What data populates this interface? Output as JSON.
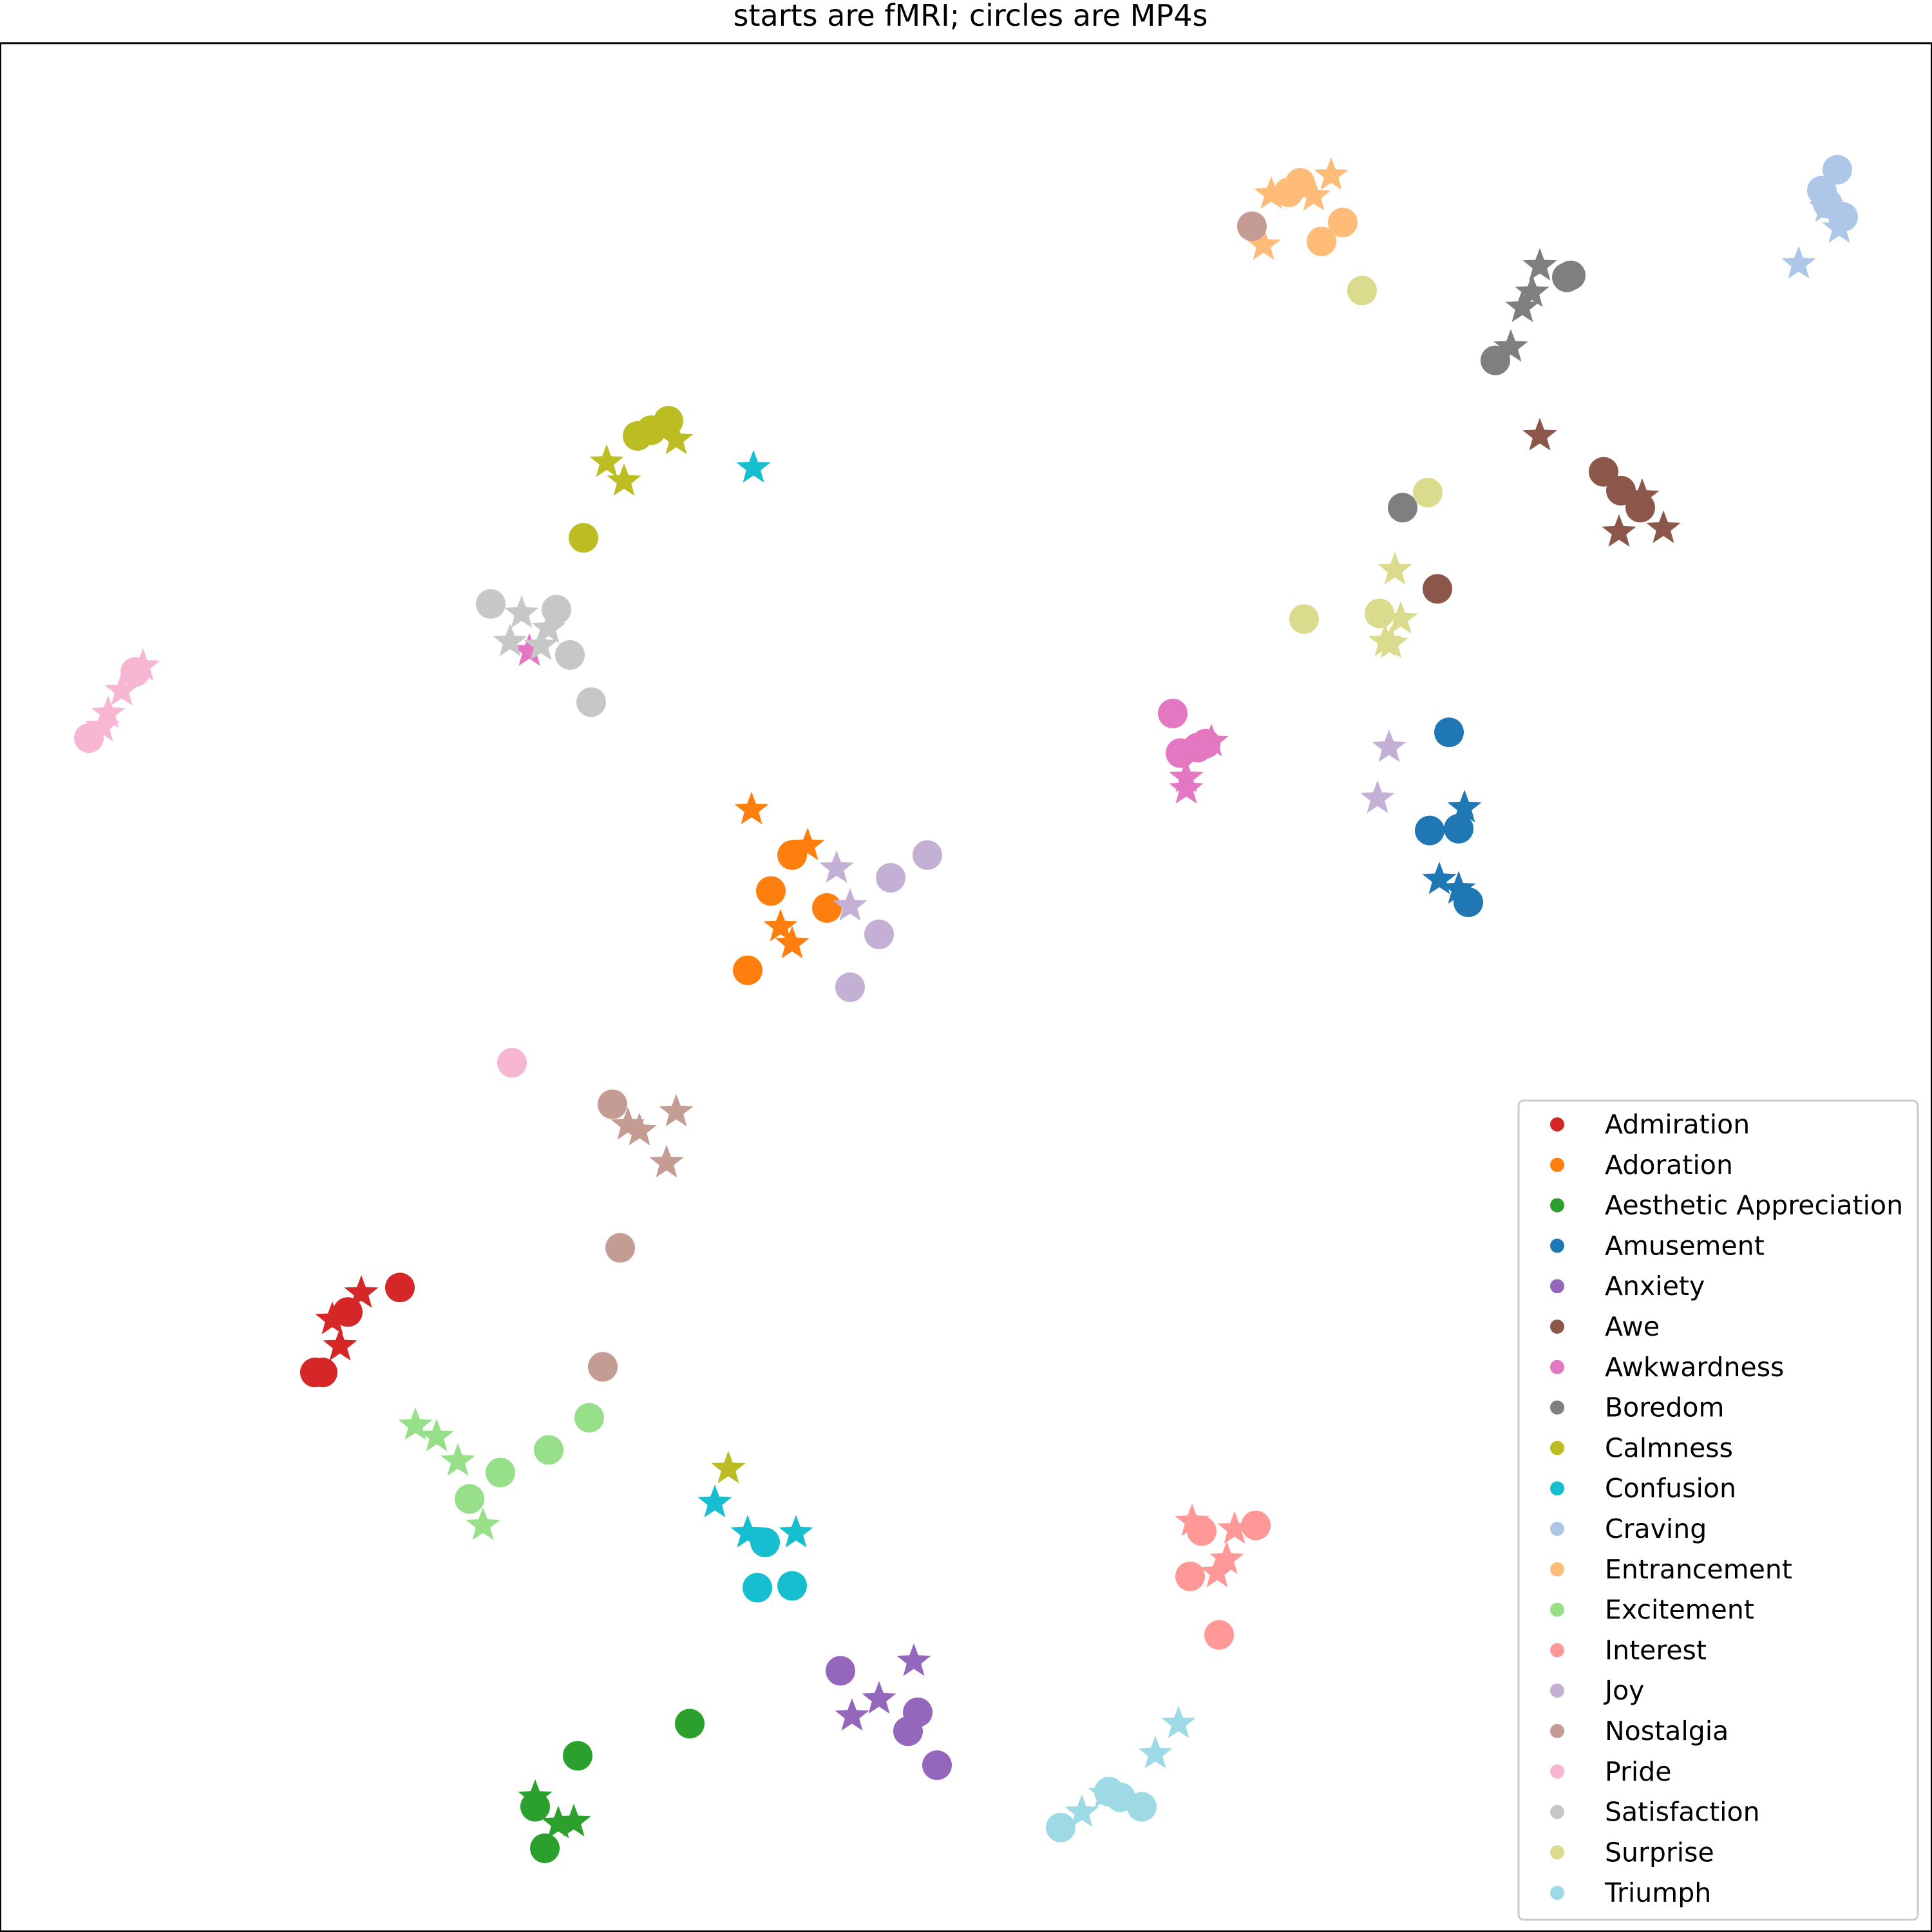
{
  "chart_data": {
    "type": "scatter",
    "title": "starts are fMRI; circles are MP4s",
    "xlabel": "",
    "ylabel": "",
    "xlim": [
      0,
      1000
    ],
    "ylim": [
      0,
      1000
    ],
    "axes_ticks": false,
    "grid": false,
    "legend": {
      "position": "bottom-right"
    },
    "marker_legend": {
      "star": "fMRI",
      "circle": "MP4s"
    },
    "series": [
      {
        "name": "Admiration",
        "color": "#d62728",
        "circles": [
          [
            207,
            341
          ],
          [
            180,
            328
          ],
          [
            163,
            296
          ],
          [
            167,
            296
          ]
        ],
        "stars": [
          [
            187,
            338
          ],
          [
            172,
            324
          ],
          [
            176,
            310
          ]
        ]
      },
      {
        "name": "Adoration",
        "color": "#ff7f0e",
        "circles": [
          [
            410,
            570
          ],
          [
            399,
            551
          ],
          [
            428,
            542
          ],
          [
            387,
            509
          ]
        ],
        "stars": [
          [
            389,
            594
          ],
          [
            418,
            575
          ],
          [
            404,
            532
          ],
          [
            410,
            523
          ]
        ]
      },
      {
        "name": "Aesthetic Appreciation",
        "color": "#2ca02c",
        "circles": [
          [
            357,
            110
          ],
          [
            299,
            93
          ],
          [
            277,
            66
          ],
          [
            282,
            44
          ]
        ],
        "stars": [
          [
            277,
            71
          ],
          [
            289,
            57
          ],
          [
            297,
            58
          ]
        ]
      },
      {
        "name": "Amusement",
        "color": "#1f77b4",
        "circles": [
          [
            750,
            635
          ],
          [
            740,
            583
          ],
          [
            755,
            584
          ],
          [
            760,
            545
          ]
        ],
        "stars": [
          [
            758,
            595
          ],
          [
            745,
            557
          ],
          [
            755,
            552
          ]
        ]
      },
      {
        "name": "Anxiety",
        "color": "#9467bd",
        "circles": [
          [
            435,
            138
          ],
          [
            475,
            116
          ],
          [
            470,
            106
          ],
          [
            485,
            88
          ]
        ],
        "stars": [
          [
            473,
            143
          ],
          [
            455,
            123
          ],
          [
            441,
            114
          ]
        ]
      },
      {
        "name": "Awe",
        "color": "#8c564b",
        "circles": [
          [
            830,
            773
          ],
          [
            839,
            763
          ],
          [
            849,
            754
          ],
          [
            744,
            711
          ]
        ],
        "stars": [
          [
            797,
            792
          ],
          [
            850,
            760
          ],
          [
            838,
            741
          ],
          [
            861,
            743
          ]
        ]
      },
      {
        "name": "Awkwardness",
        "color": "#e377c2",
        "circles": [
          [
            607,
            645
          ],
          [
            611,
            624
          ],
          [
            620,
            627
          ],
          [
            624,
            629
          ]
        ],
        "stars": [
          [
            627,
            630
          ],
          [
            614,
            611
          ],
          [
            614,
            605
          ],
          [
            274,
            678
          ]
        ]
      },
      {
        "name": "Boredom",
        "color": "#7f7f7f",
        "circles": [
          [
            813,
            877
          ],
          [
            811,
            876
          ],
          [
            774,
            832
          ],
          [
            726,
            754
          ]
        ],
        "stars": [
          [
            797,
            882
          ],
          [
            793,
            868
          ],
          [
            788,
            860
          ],
          [
            782,
            839
          ]
        ]
      },
      {
        "name": "Calmness",
        "color": "#bcbd22",
        "circles": [
          [
            346,
            800
          ],
          [
            337,
            795
          ],
          [
            330,
            792
          ],
          [
            302,
            738
          ]
        ],
        "stars": [
          [
            350,
            790
          ],
          [
            314,
            778
          ],
          [
            323,
            768
          ],
          [
            377,
            245
          ]
        ]
      },
      {
        "name": "Confusion",
        "color": "#17becf",
        "circles": [
          [
            396,
            206
          ],
          [
            392,
            182
          ],
          [
            410,
            183
          ]
        ],
        "stars": [
          [
            390,
            775
          ],
          [
            370,
            227
          ],
          [
            387,
            211
          ],
          [
            412,
            211
          ]
        ]
      },
      {
        "name": "Craving",
        "color": "#aec7e8",
        "circles": [
          [
            951,
            933
          ],
          [
            943,
            922
          ],
          [
            946,
            915
          ],
          [
            954,
            908
          ]
        ],
        "stars": [
          [
            945,
            913
          ],
          [
            952,
            902
          ],
          [
            931,
            883
          ]
        ]
      },
      {
        "name": "Entrancement",
        "color": "#ffbb78",
        "circles": [
          [
            673,
            926
          ],
          [
            667,
            921
          ],
          [
            695,
            905
          ],
          [
            684,
            895
          ]
        ],
        "stars": [
          [
            689,
            930
          ],
          [
            658,
            920
          ],
          [
            680,
            919
          ],
          [
            654,
            893
          ]
        ]
      },
      {
        "name": "Excitement",
        "color": "#98df8a",
        "circles": [
          [
            305,
            272
          ],
          [
            284,
            255
          ],
          [
            259,
            243
          ],
          [
            243,
            229
          ]
        ],
        "stars": [
          [
            215,
            268
          ],
          [
            226,
            262
          ],
          [
            237,
            249
          ],
          [
            250,
            215
          ]
        ]
      },
      {
        "name": "Interest",
        "color": "#ff9896",
        "circles": [
          [
            650,
            215
          ],
          [
            622,
            212
          ],
          [
            616,
            188
          ],
          [
            631,
            157
          ]
        ],
        "stars": [
          [
            617,
            217
          ],
          [
            639,
            213
          ],
          [
            635,
            197
          ],
          [
            630,
            190
          ]
        ]
      },
      {
        "name": "Joy",
        "color": "#c5b0d5",
        "circles": [
          [
            480,
            570
          ],
          [
            461,
            558
          ],
          [
            455,
            528
          ],
          [
            440,
            500
          ]
        ],
        "stars": [
          [
            433,
            563
          ],
          [
            440,
            543
          ],
          [
            719,
            627
          ],
          [
            713,
            600
          ]
        ]
      },
      {
        "name": "Nostalgia",
        "color": "#c49c94",
        "circles": [
          [
            648,
            903
          ],
          [
            317,
            438
          ],
          [
            321,
            362
          ],
          [
            312,
            299
          ]
        ],
        "stars": [
          [
            350,
            434
          ],
          [
            325,
            427
          ],
          [
            331,
            424
          ],
          [
            345,
            407
          ]
        ]
      },
      {
        "name": "Pride",
        "color": "#f7b6d2",
        "circles": [
          [
            70,
            667
          ],
          [
            46,
            632
          ],
          [
            265,
            460
          ]
        ],
        "stars": [
          [
            74,
            670
          ],
          [
            63,
            657
          ],
          [
            56,
            645
          ],
          [
            53,
            638
          ]
        ]
      },
      {
        "name": "Satisfaction",
        "color": "#c7c7c7",
        "circles": [
          [
            254,
            703
          ],
          [
            288,
            700
          ],
          [
            295,
            676
          ],
          [
            306,
            651
          ]
        ],
        "stars": [
          [
            270,
            698
          ],
          [
            284,
            690
          ],
          [
            264,
            683
          ],
          [
            280,
            681
          ]
        ]
      },
      {
        "name": "Surprise",
        "color": "#dbdb8d",
        "circles": [
          [
            705,
            869
          ],
          [
            739,
            762
          ],
          [
            675,
            695
          ],
          [
            714,
            698
          ]
        ],
        "stars": [
          [
            722,
            721
          ],
          [
            725,
            695
          ],
          [
            717,
            683
          ],
          [
            720,
            682
          ]
        ]
      },
      {
        "name": "Triumph",
        "color": "#9edae5",
        "circles": [
          [
            549,
            55
          ],
          [
            574,
            74
          ],
          [
            580,
            71
          ],
          [
            591,
            66
          ]
        ],
        "stars": [
          [
            560,
            63
          ],
          [
            610,
            110
          ],
          [
            598,
            94
          ],
          [
            572,
            73
          ]
        ]
      }
    ]
  }
}
